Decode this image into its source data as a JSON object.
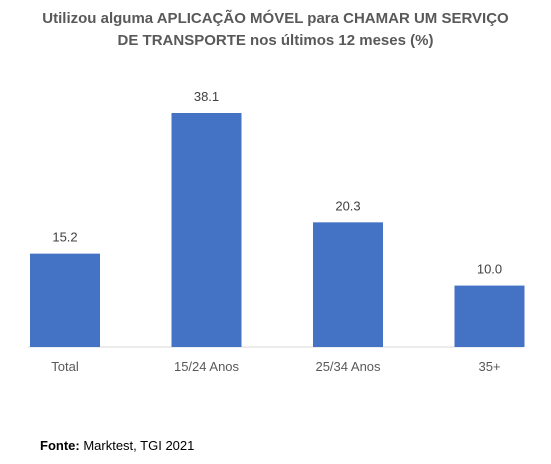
{
  "chart_data": {
    "type": "bar",
    "title": [
      "Utilizou alguma APLICAÇÃO MÓVEL para CHAMAR UM SERVIÇO",
      "DE TRANSPORTE nos últimos 12 meses (%)"
    ],
    "categories": [
      "Total",
      "15/24 Anos",
      "25/34 Anos",
      "35+"
    ],
    "values": [
      15.2,
      38.1,
      20.3,
      10.0
    ],
    "value_labels": [
      "15.2",
      "38.1",
      "20.3",
      "10.0"
    ],
    "ylim": [
      0,
      38.1
    ],
    "grid": false,
    "legend": "none",
    "bar_color": "#4472C4",
    "axis_color": "#D9D9D9"
  },
  "source": {
    "label": "Fonte:",
    "text": " Marktest, TGI 2021"
  }
}
